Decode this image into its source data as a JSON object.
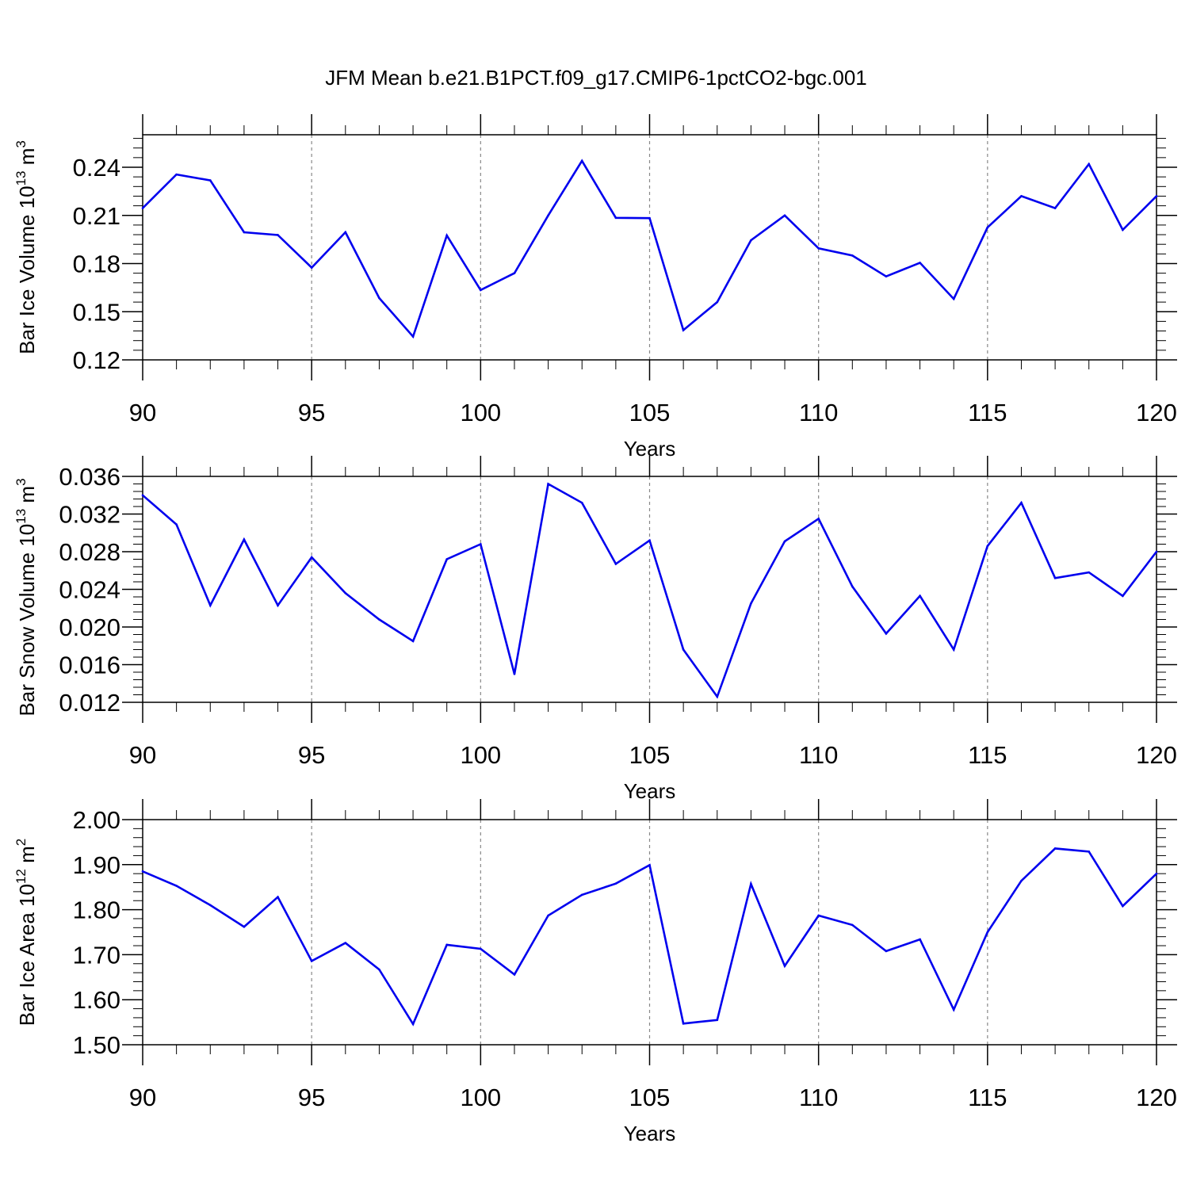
{
  "title": "JFM Mean b.e21.B1PCT.f09_g17.CMIP6-1pctCO2-bgc.001",
  "colors": {
    "line": "#0000ee",
    "axis": "#000000",
    "grid": "#888888"
  },
  "chart_data": [
    {
      "type": "line",
      "xlabel": "Years",
      "ylabel": {
        "text": "Bar Ice Volume 10",
        "exp": "13",
        "unit": " m",
        "unit_exp": "3"
      },
      "xlim": [
        90,
        120
      ],
      "ylim": [
        0.12,
        0.26
      ],
      "xticks": [
        90,
        95,
        100,
        105,
        110,
        115,
        120
      ],
      "yticks": [
        "0.12",
        "0.15",
        "0.18",
        "0.21",
        "0.24"
      ],
      "grid": "x-dashed",
      "x": [
        90,
        91,
        92,
        93,
        94,
        95,
        96,
        97,
        98,
        99,
        100,
        101,
        102,
        103,
        104,
        105,
        106,
        107,
        108,
        109,
        110,
        111,
        112,
        113,
        114,
        115,
        116,
        117,
        118,
        119,
        120
      ],
      "values": [
        0.2145,
        0.2355,
        0.2318,
        0.1995,
        0.1978,
        0.1775,
        0.1995,
        0.1585,
        0.1345,
        0.1975,
        0.1635,
        0.174,
        0.21,
        0.244,
        0.2085,
        0.2083,
        0.1385,
        0.156,
        0.1945,
        0.21,
        0.1895,
        0.185,
        0.172,
        0.1805,
        0.158,
        0.2025,
        0.222,
        0.2145,
        0.242,
        0.201,
        0.222
      ]
    },
    {
      "type": "line",
      "xlabel": "Years",
      "ylabel": {
        "text": "Bar Snow Volume 10",
        "exp": "13",
        "unit": " m",
        "unit_exp": "3"
      },
      "xlim": [
        90,
        120
      ],
      "ylim": [
        0.012,
        0.038
      ],
      "xticks": [
        90,
        95,
        100,
        105,
        110,
        115,
        120
      ],
      "yticks": [
        "0.012",
        "0.016",
        "0.020",
        "0.024",
        "0.028",
        "0.032",
        "0.036"
      ],
      "grid": "x-dashed",
      "x": [
        90,
        91,
        92,
        93,
        94,
        95,
        96,
        97,
        98,
        99,
        100,
        101,
        102,
        103,
        104,
        105,
        106,
        107,
        108,
        109,
        110,
        111,
        112,
        113,
        114,
        115,
        116,
        117,
        118,
        119,
        120
      ],
      "values": [
        0.034,
        0.0309,
        0.0223,
        0.0293,
        0.0223,
        0.0274,
        0.0236,
        0.0208,
        0.0185,
        0.0272,
        0.0288,
        0.015,
        0.0352,
        0.0332,
        0.0267,
        0.0292,
        0.0176,
        0.0126,
        0.0225,
        0.0291,
        0.0315,
        0.0243,
        0.0193,
        0.0233,
        0.0176,
        0.0286,
        0.0332,
        0.0252,
        0.0258,
        0.0233,
        0.028
      ]
    },
    {
      "type": "line",
      "xlabel": "Years",
      "ylabel": {
        "text": "Bar Ice Area 10",
        "exp": "12",
        "unit": " m",
        "unit_exp": "2"
      },
      "xlim": [
        90,
        120
      ],
      "ylim": [
        1.5,
        2.05
      ],
      "xticks": [
        90,
        95,
        100,
        105,
        110,
        115,
        120
      ],
      "yticks": [
        "1.50",
        "1.60",
        "1.70",
        "1.80",
        "1.90",
        "2.00"
      ],
      "grid": "x-dashed",
      "x": [
        90,
        91,
        92,
        93,
        94,
        95,
        96,
        97,
        98,
        99,
        100,
        101,
        102,
        103,
        104,
        105,
        106,
        107,
        108,
        109,
        110,
        111,
        112,
        113,
        114,
        115,
        116,
        117,
        118,
        119,
        120
      ],
      "values": [
        1.885,
        1.853,
        1.81,
        1.762,
        1.828,
        1.686,
        1.726,
        1.667,
        1.546,
        1.722,
        1.713,
        1.656,
        1.787,
        1.833,
        1.858,
        1.899,
        1.547,
        1.555,
        1.857,
        1.675,
        1.787,
        1.766,
        1.708,
        1.734,
        1.578,
        1.75,
        1.864,
        1.936,
        1.929,
        1.808,
        1.88
      ]
    }
  ]
}
